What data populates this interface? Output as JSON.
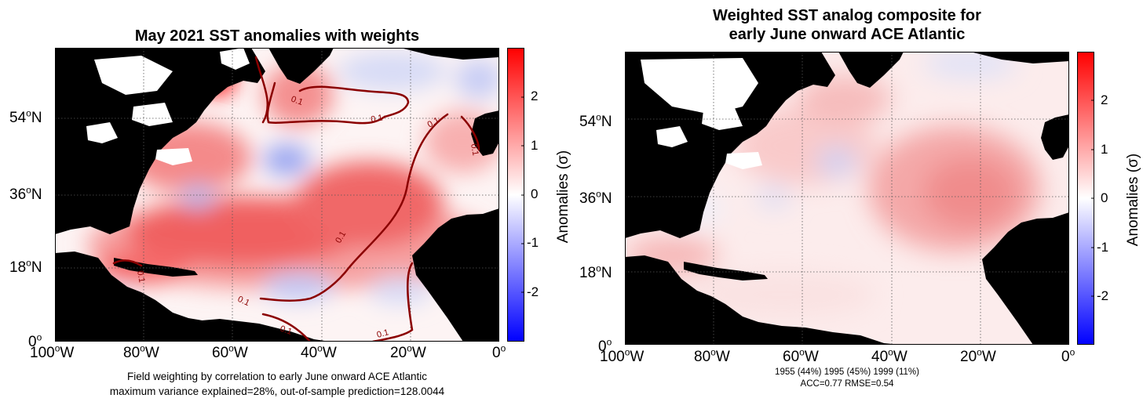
{
  "left_panel": {
    "title": "May 2021 SST anomalies with weights",
    "caption_line1": "Field weighting by correlation to early June onward ACE Atlantic",
    "caption_line2": "maximum variance explained=28%, out-of-sample prediction=128.0044",
    "contour_label": "0.1",
    "colorbar_label": "Anomalies (σ)"
  },
  "right_panel": {
    "title_line1": "Weighted SST analog composite for",
    "title_line2": "early June onward ACE Atlantic",
    "caption_line1": "1955 (44%) 1995 (45%) 1999 (11%)",
    "caption_line2": "ACC=0.77 RMSE=0.54",
    "colorbar_label": "Anomalies (σ)"
  },
  "axes": {
    "lon_ticks": [
      "100",
      "80",
      "60",
      "40",
      "20",
      "0"
    ],
    "lon_suffix": "W",
    "lat_ticks": [
      "54",
      "36",
      "18",
      "0"
    ],
    "lat_suffix": "N",
    "degree": "o"
  },
  "colorbar": {
    "ticks": [
      "2",
      "1",
      "0",
      "-1",
      "-2"
    ],
    "range": [
      -3,
      3
    ],
    "colors": {
      "high": "#ff0000",
      "mid": "#ffffff",
      "low": "#0000ff"
    }
  },
  "colors": {
    "land": "#000000",
    "contour": "#8b0000",
    "grid": "#555555"
  }
}
